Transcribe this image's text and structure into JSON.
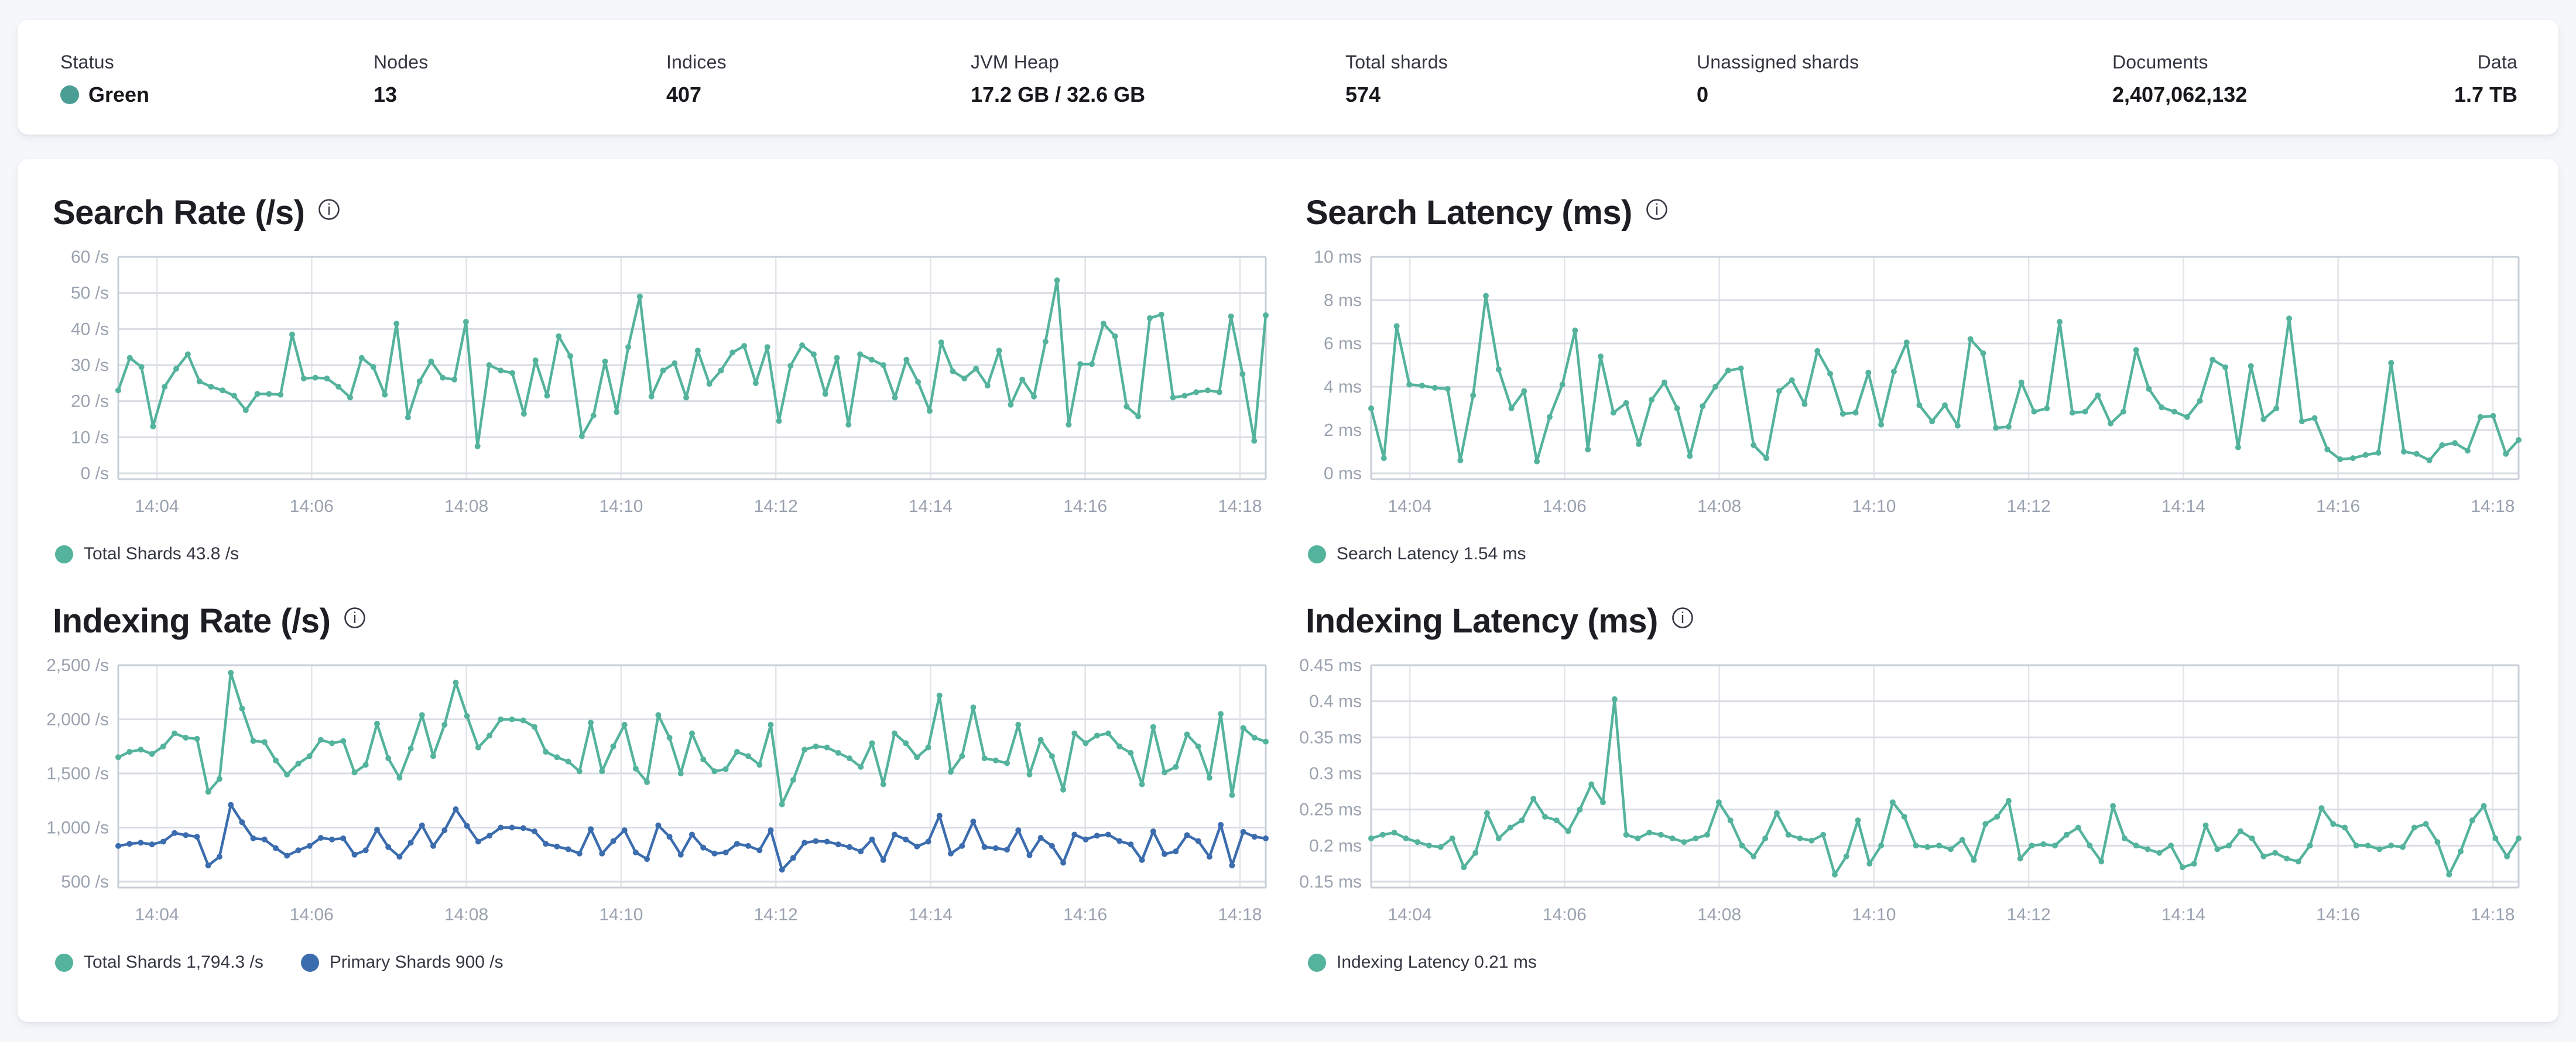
{
  "status_bar": {
    "status_dot_color": "#4a9e94",
    "items": [
      {
        "label": "Status",
        "value": "Green",
        "has_dot": true
      },
      {
        "label": "Nodes",
        "value": "13"
      },
      {
        "label": "Indices",
        "value": "407"
      },
      {
        "label": "JVM Heap",
        "value": "17.2 GB / 32.6 GB"
      },
      {
        "label": "Total shards",
        "value": "574"
      },
      {
        "label": "Unassigned shards",
        "value": "0"
      },
      {
        "label": "Documents",
        "value": "2,407,062,132"
      },
      {
        "label": "Data",
        "value": "1.7 TB"
      }
    ]
  },
  "chart_data": [
    {
      "type": "line",
      "title": "Search Rate (/s)",
      "ylabel": "/s",
      "ylim": [
        0,
        60
      ],
      "grid": true,
      "legend_position": "bottom",
      "y_ticks": [
        {
          "v": 0,
          "label": "0 /s"
        },
        {
          "v": 10,
          "label": "10 /s"
        },
        {
          "v": 20,
          "label": "20 /s"
        },
        {
          "v": 30,
          "label": "30 /s"
        },
        {
          "v": 40,
          "label": "40 /s"
        },
        {
          "v": 50,
          "label": "50 /s"
        },
        {
          "v": 60,
          "label": "60 /s"
        }
      ],
      "t_span": 890,
      "x_ticks": [
        {
          "t": 30,
          "label": "14:04"
        },
        {
          "t": 150,
          "label": "14:06"
        },
        {
          "t": 270,
          "label": "14:08"
        },
        {
          "t": 390,
          "label": "14:10"
        },
        {
          "t": 510,
          "label": "14:12"
        },
        {
          "t": 630,
          "label": "14:14"
        },
        {
          "t": 750,
          "label": "14:16"
        },
        {
          "t": 870,
          "label": "14:18"
        }
      ],
      "legend": [
        {
          "label": "Total Shards 43.8 /s",
          "color": "#54b39d"
        }
      ],
      "series": [
        {
          "name": "Total Shards",
          "color": "#54b39d",
          "values": [
            23,
            32,
            29.5,
            13,
            24,
            29,
            33,
            25.5,
            24,
            23,
            21.5,
            17.5,
            22,
            22,
            21.8,
            38.5,
            26.3,
            26.5,
            26.3,
            24,
            21,
            32,
            29.5,
            21.8,
            41.5,
            15.5,
            25.5,
            31,
            26.5,
            26,
            42,
            7.5,
            30,
            28.5,
            27.8,
            16.5,
            31.3,
            21.5,
            38,
            32.5,
            10.3,
            16,
            31,
            17,
            35,
            49,
            21.3,
            28.5,
            30.5,
            21,
            34,
            24.8,
            28.5,
            33.5,
            35.3,
            25,
            35,
            14.5,
            29.8,
            35.5,
            33,
            22,
            32,
            13.5,
            33,
            31.5,
            30,
            21,
            31.5,
            25.3,
            17.3,
            36.3,
            28.3,
            26.3,
            29,
            24.3,
            34,
            19,
            26,
            21.3,
            36.5,
            53.5,
            13.5,
            30.3,
            30.3,
            41.5,
            38,
            18.5,
            15.8,
            43,
            44,
            21,
            21.5,
            22.5,
            23,
            22.5,
            43.5,
            27.5,
            9,
            43.8
          ]
        }
      ]
    },
    {
      "type": "line",
      "title": "Search Latency (ms)",
      "ylabel": "ms",
      "ylim": [
        0,
        10
      ],
      "grid": true,
      "legend_position": "bottom",
      "y_ticks": [
        {
          "v": 0,
          "label": "0 ms"
        },
        {
          "v": 2,
          "label": "2 ms"
        },
        {
          "v": 4,
          "label": "4 ms"
        },
        {
          "v": 6,
          "label": "6 ms"
        },
        {
          "v": 8,
          "label": "8 ms"
        },
        {
          "v": 10,
          "label": "10 ms"
        }
      ],
      "t_span": 890,
      "x_ticks": [
        {
          "t": 30,
          "label": "14:04"
        },
        {
          "t": 150,
          "label": "14:06"
        },
        {
          "t": 270,
          "label": "14:08"
        },
        {
          "t": 390,
          "label": "14:10"
        },
        {
          "t": 510,
          "label": "14:12"
        },
        {
          "t": 630,
          "label": "14:14"
        },
        {
          "t": 750,
          "label": "14:16"
        },
        {
          "t": 870,
          "label": "14:18"
        }
      ],
      "legend": [
        {
          "label": "Search Latency 1.54 ms",
          "color": "#54b39d"
        }
      ],
      "series": [
        {
          "name": "Search Latency",
          "color": "#54b39d",
          "values": [
            3.0,
            0.7,
            6.8,
            4.1,
            4.05,
            3.95,
            3.9,
            0.6,
            3.6,
            8.2,
            4.8,
            3.0,
            3.8,
            0.55,
            2.6,
            4.1,
            6.6,
            1.1,
            5.4,
            2.8,
            3.25,
            1.35,
            3.4,
            4.2,
            3.0,
            0.8,
            3.1,
            4.0,
            4.75,
            4.85,
            1.3,
            0.7,
            3.8,
            4.3,
            3.2,
            5.65,
            4.6,
            2.75,
            2.8,
            4.65,
            2.25,
            4.7,
            6.05,
            3.15,
            2.4,
            3.15,
            2.2,
            6.2,
            5.55,
            2.1,
            2.15,
            4.2,
            2.85,
            3.0,
            7.0,
            2.8,
            2.85,
            3.6,
            2.3,
            2.85,
            5.7,
            3.9,
            3.05,
            2.85,
            2.6,
            3.35,
            5.25,
            4.9,
            1.2,
            4.95,
            2.5,
            3.0,
            7.15,
            2.4,
            2.55,
            1.1,
            0.65,
            0.7,
            0.85,
            0.95,
            5.1,
            1.0,
            0.9,
            0.6,
            1.3,
            1.4,
            1.05,
            2.6,
            2.65,
            0.9,
            1.54
          ]
        }
      ]
    },
    {
      "type": "line",
      "title": "Indexing Rate (/s)",
      "ylabel": "/s",
      "ylim": [
        500,
        2500
      ],
      "grid": true,
      "legend_position": "bottom",
      "y_ticks": [
        {
          "v": 500,
          "label": "500 /s"
        },
        {
          "v": 1000,
          "label": "1,000 /s"
        },
        {
          "v": 1500,
          "label": "1,500 /s"
        },
        {
          "v": 2000,
          "label": "2,000 /s"
        },
        {
          "v": 2500,
          "label": "2,500 /s"
        }
      ],
      "t_span": 890,
      "x_ticks": [
        {
          "t": 30,
          "label": "14:04"
        },
        {
          "t": 150,
          "label": "14:06"
        },
        {
          "t": 270,
          "label": "14:08"
        },
        {
          "t": 390,
          "label": "14:10"
        },
        {
          "t": 510,
          "label": "14:12"
        },
        {
          "t": 630,
          "label": "14:14"
        },
        {
          "t": 750,
          "label": "14:16"
        },
        {
          "t": 870,
          "label": "14:18"
        }
      ],
      "legend": [
        {
          "label": "Total Shards 1,794.3 /s",
          "color": "#54b39d"
        },
        {
          "label": "Primary Shards 900 /s",
          "color": "#3b6cae"
        }
      ],
      "series": [
        {
          "name": "Total Shards",
          "color": "#54b39d",
          "values": [
            1650,
            1700,
            1720,
            1680,
            1750,
            1870,
            1830,
            1820,
            1330,
            1450,
            2430,
            2100,
            1800,
            1790,
            1620,
            1490,
            1590,
            1660,
            1810,
            1780,
            1800,
            1510,
            1580,
            1960,
            1640,
            1460,
            1730,
            2040,
            1660,
            1950,
            2340,
            2030,
            1740,
            1850,
            2000,
            2000,
            1990,
            1930,
            1700,
            1650,
            1610,
            1520,
            1970,
            1520,
            1750,
            1950,
            1545,
            1420,
            2040,
            1830,
            1500,
            1870,
            1630,
            1520,
            1540,
            1700,
            1660,
            1580,
            1950,
            1215,
            1440,
            1720,
            1750,
            1740,
            1690,
            1640,
            1560,
            1780,
            1400,
            1870,
            1780,
            1650,
            1740,
            2220,
            1515,
            1660,
            2110,
            1640,
            1620,
            1595,
            1950,
            1490,
            1810,
            1660,
            1350,
            1870,
            1780,
            1850,
            1870,
            1750,
            1690,
            1400,
            1930,
            1510,
            1560,
            1860,
            1750,
            1460,
            2050,
            1300,
            1920,
            1830,
            1794.3
          ]
        },
        {
          "name": "Primary Shards",
          "color": "#3b6cae",
          "values": [
            830,
            850,
            860,
            845,
            870,
            950,
            930,
            915,
            650,
            730,
            1210,
            1050,
            900,
            890,
            810,
            740,
            790,
            830,
            905,
            890,
            900,
            750,
            790,
            980,
            820,
            730,
            860,
            1020,
            830,
            975,
            1170,
            1015,
            870,
            925,
            1000,
            1000,
            995,
            965,
            850,
            825,
            800,
            760,
            985,
            760,
            875,
            975,
            770,
            710,
            1020,
            915,
            750,
            935,
            815,
            760,
            770,
            850,
            830,
            790,
            975,
            610,
            720,
            860,
            875,
            870,
            845,
            820,
            780,
            890,
            700,
            935,
            890,
            825,
            870,
            1110,
            760,
            830,
            1055,
            820,
            810,
            795,
            975,
            745,
            905,
            830,
            675,
            935,
            890,
            925,
            935,
            875,
            845,
            700,
            965,
            755,
            780,
            930,
            875,
            730,
            1025,
            650,
            960,
            915,
            900
          ]
        }
      ]
    },
    {
      "type": "line",
      "title": "Indexing Latency (ms)",
      "ylabel": "ms",
      "ylim": [
        0.15,
        0.45
      ],
      "grid": true,
      "legend_position": "bottom",
      "y_ticks": [
        {
          "v": 0.15,
          "label": "0.15 ms"
        },
        {
          "v": 0.2,
          "label": "0.2 ms"
        },
        {
          "v": 0.25,
          "label": "0.25 ms"
        },
        {
          "v": 0.3,
          "label": "0.3 ms"
        },
        {
          "v": 0.35,
          "label": "0.35 ms"
        },
        {
          "v": 0.4,
          "label": "0.4 ms"
        },
        {
          "v": 0.45,
          "label": "0.45 ms"
        }
      ],
      "t_span": 890,
      "x_ticks": [
        {
          "t": 30,
          "label": "14:04"
        },
        {
          "t": 150,
          "label": "14:06"
        },
        {
          "t": 270,
          "label": "14:08"
        },
        {
          "t": 390,
          "label": "14:10"
        },
        {
          "t": 510,
          "label": "14:12"
        },
        {
          "t": 630,
          "label": "14:14"
        },
        {
          "t": 750,
          "label": "14:16"
        },
        {
          "t": 870,
          "label": "14:18"
        }
      ],
      "legend": [
        {
          "label": "Indexing Latency 0.21 ms",
          "color": "#54b39d"
        }
      ],
      "series": [
        {
          "name": "Indexing Latency",
          "color": "#54b39d",
          "values": [
            0.21,
            0.215,
            0.218,
            0.21,
            0.205,
            0.2,
            0.198,
            0.21,
            0.17,
            0.19,
            0.245,
            0.21,
            0.225,
            0.235,
            0.265,
            0.24,
            0.235,
            0.22,
            0.25,
            0.285,
            0.26,
            0.403,
            0.215,
            0.21,
            0.218,
            0.215,
            0.21,
            0.205,
            0.21,
            0.215,
            0.26,
            0.235,
            0.2,
            0.185,
            0.21,
            0.245,
            0.215,
            0.21,
            0.207,
            0.215,
            0.16,
            0.185,
            0.235,
            0.175,
            0.2,
            0.26,
            0.24,
            0.2,
            0.198,
            0.2,
            0.195,
            0.208,
            0.18,
            0.23,
            0.24,
            0.262,
            0.182,
            0.2,
            0.202,
            0.2,
            0.215,
            0.225,
            0.2,
            0.178,
            0.255,
            0.21,
            0.2,
            0.195,
            0.19,
            0.2,
            0.17,
            0.175,
            0.228,
            0.195,
            0.2,
            0.22,
            0.21,
            0.185,
            0.19,
            0.182,
            0.178,
            0.2,
            0.252,
            0.23,
            0.225,
            0.2,
            0.2,
            0.195,
            0.2,
            0.198,
            0.225,
            0.23,
            0.205,
            0.16,
            0.192,
            0.235,
            0.255,
            0.21,
            0.185,
            0.21
          ]
        }
      ]
    }
  ]
}
